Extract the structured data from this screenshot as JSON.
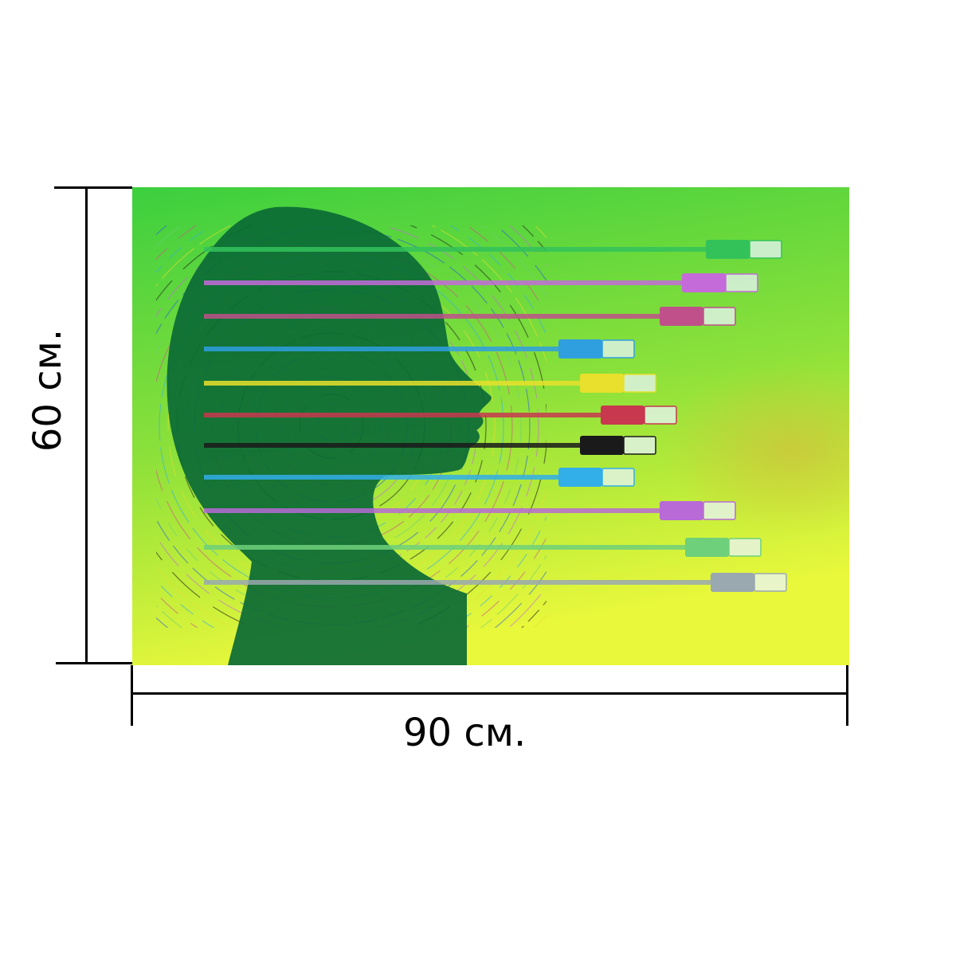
{
  "product": {
    "width_label": "90 см.",
    "height_label": "60 см."
  },
  "artwork": {
    "background_colors": [
      "#3ccf3f",
      "#8fe13a",
      "#eaf83b"
    ],
    "head_color": "#0b6a35",
    "cables": [
      {
        "color": "#33c25a"
      },
      {
        "color": "#c46ad9"
      },
      {
        "color": "#c0508a"
      },
      {
        "color": "#2f9fe0"
      },
      {
        "color": "#e8e02c"
      },
      {
        "color": "#c8384f"
      },
      {
        "color": "#1a1a1a"
      },
      {
        "color": "#32aee8"
      },
      {
        "color": "#b86ad6"
      },
      {
        "color": "#6ed07a"
      },
      {
        "color": "#9aa8b0"
      }
    ]
  }
}
